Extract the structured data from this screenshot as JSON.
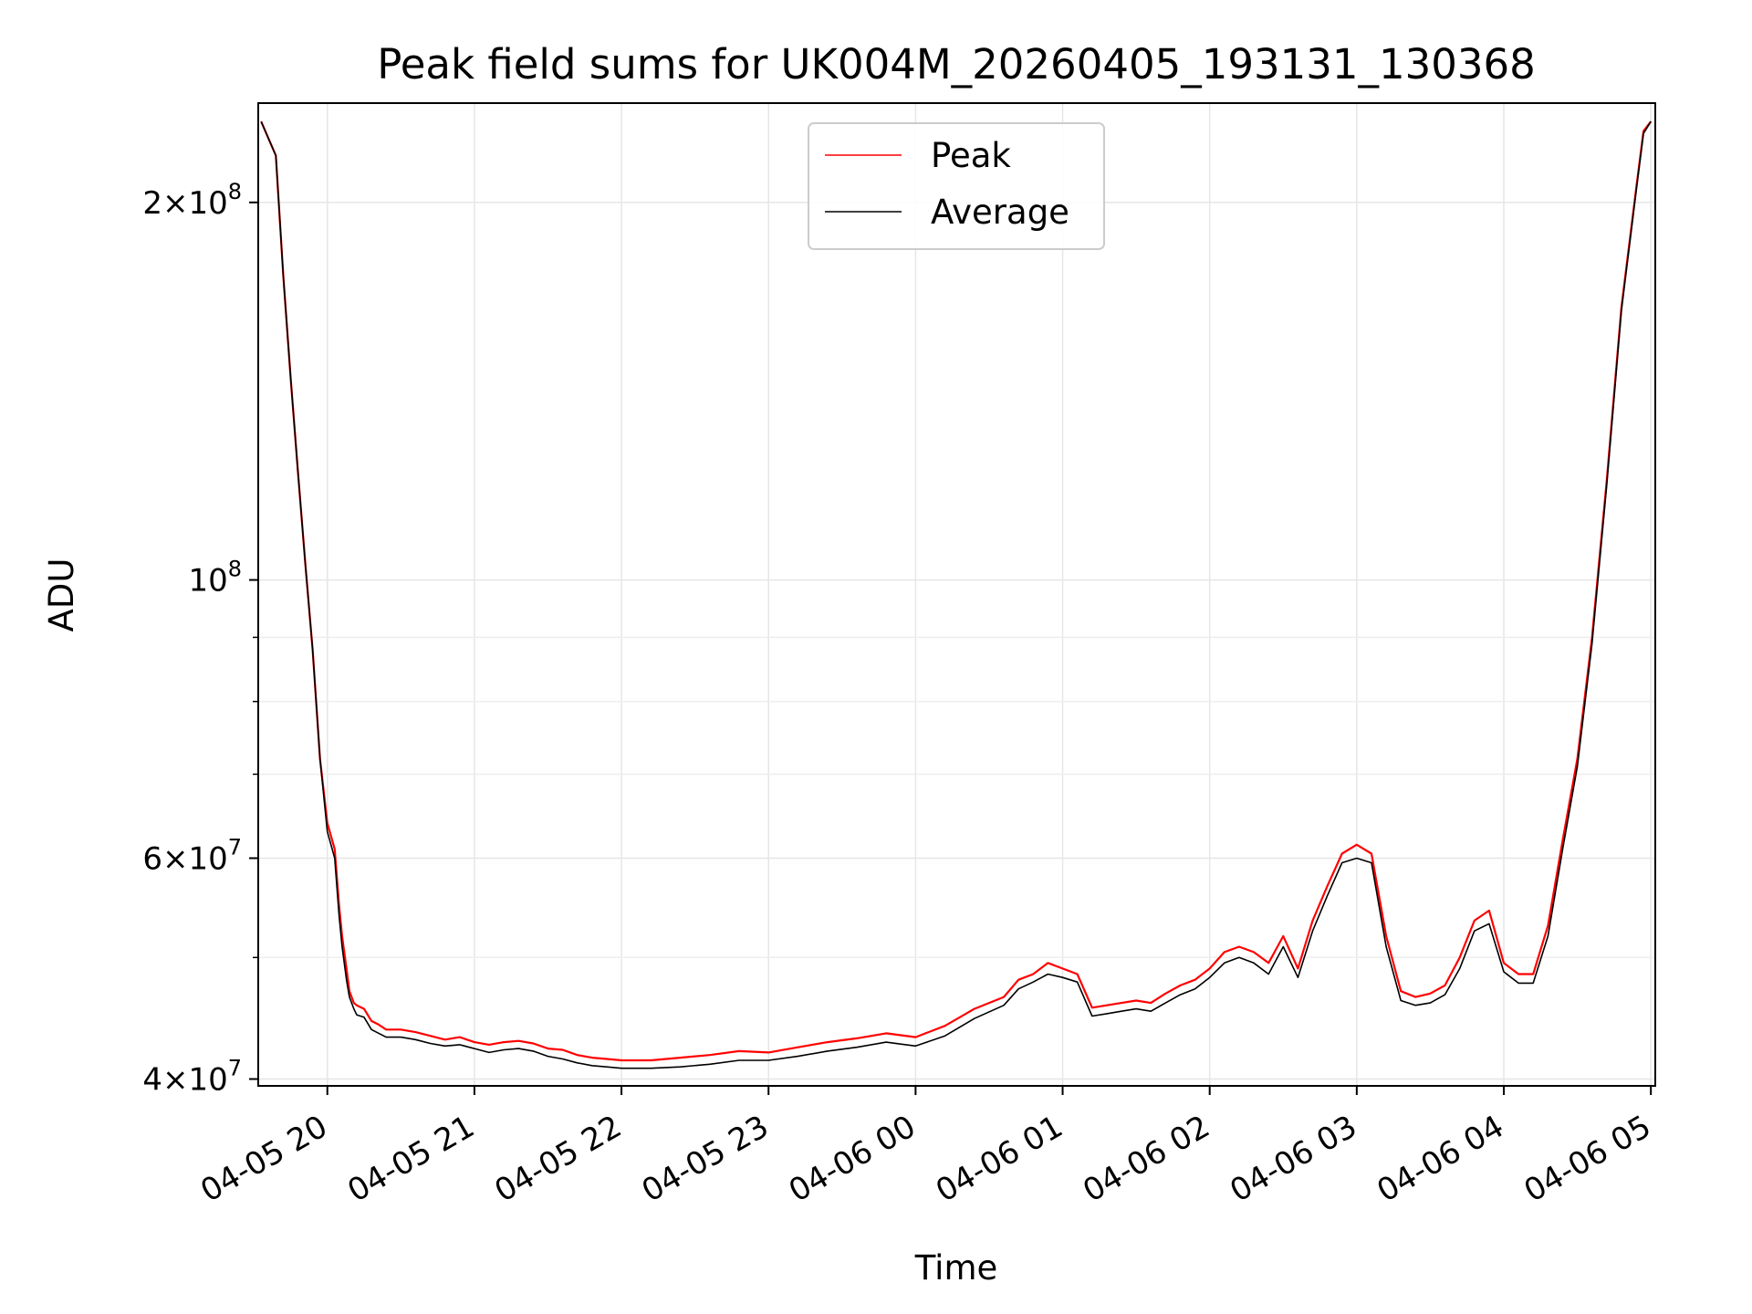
{
  "chart_data": {
    "type": "line",
    "title": "Peak field sums for UK004M_20260405_193131_130368",
    "xlabel": "Time",
    "ylabel": "ADU",
    "yscale": "log",
    "ylim": [
      39500000,
      240000000
    ],
    "xlim": [
      -0.47,
      9.03
    ],
    "grid": true,
    "legend_position": "top-center",
    "x_ticks": [
      {
        "value": 0,
        "label": "04-05 20"
      },
      {
        "value": 1,
        "label": "04-05 21"
      },
      {
        "value": 2,
        "label": "04-05 22"
      },
      {
        "value": 3,
        "label": "04-05 23"
      },
      {
        "value": 4,
        "label": "04-06 00"
      },
      {
        "value": 5,
        "label": "04-06 01"
      },
      {
        "value": 6,
        "label": "04-06 02"
      },
      {
        "value": 7,
        "label": "04-06 03"
      },
      {
        "value": 8,
        "label": "04-06 04"
      },
      {
        "value": 9,
        "label": "04-06 05"
      }
    ],
    "y_ticks": [
      {
        "value": 40000000,
        "mant": "4",
        "exp": "7"
      },
      {
        "value": 60000000,
        "mant": "6",
        "exp": "7"
      },
      {
        "value": 100000000,
        "mant": "",
        "exp": "8"
      },
      {
        "value": 200000000,
        "mant": "2",
        "exp": "8"
      }
    ],
    "y_minor_ticks": [
      50000000,
      70000000,
      80000000,
      90000000
    ],
    "x_hours_note": "x values are hours after 04-05 20:00",
    "series": [
      {
        "name": "Peak",
        "color": "#ff0000",
        "x": [
          -0.45,
          -0.35,
          -0.3,
          -0.25,
          -0.2,
          -0.15,
          -0.1,
          -0.05,
          0.0,
          0.05,
          0.08,
          0.1,
          0.13,
          0.15,
          0.18,
          0.2,
          0.25,
          0.3,
          0.35,
          0.4,
          0.5,
          0.6,
          0.7,
          0.8,
          0.9,
          1.0,
          1.1,
          1.2,
          1.3,
          1.4,
          1.5,
          1.6,
          1.7,
          1.8,
          1.9,
          2.0,
          2.2,
          2.4,
          2.6,
          2.8,
          3.0,
          3.2,
          3.4,
          3.6,
          3.8,
          4.0,
          4.2,
          4.4,
          4.6,
          4.7,
          4.8,
          4.9,
          5.0,
          5.1,
          5.2,
          5.3,
          5.4,
          5.5,
          5.6,
          5.7,
          5.8,
          5.9,
          6.0,
          6.1,
          6.2,
          6.3,
          6.4,
          6.5,
          6.6,
          6.7,
          6.8,
          6.9,
          7.0,
          7.1,
          7.2,
          7.3,
          7.4,
          7.5,
          7.6,
          7.7,
          7.8,
          7.9,
          8.0,
          8.1,
          8.2,
          8.3,
          8.4,
          8.5,
          8.6,
          8.7,
          8.8,
          8.9,
          8.95,
          9.0
        ],
        "y": [
          232000000,
          218000000,
          175000000,
          145000000,
          122000000,
          103000000,
          88000000,
          72000000,
          64000000,
          61000000,
          55000000,
          52000000,
          49000000,
          47000000,
          46000000,
          45800000,
          45500000,
          44500000,
          44200000,
          43800000,
          43800000,
          43600000,
          43300000,
          43000000,
          43200000,
          42800000,
          42600000,
          42800000,
          42900000,
          42700000,
          42300000,
          42200000,
          41800000,
          41600000,
          41500000,
          41400000,
          41400000,
          41600000,
          41800000,
          42100000,
          42000000,
          42400000,
          42800000,
          43100000,
          43500000,
          43200000,
          44100000,
          45500000,
          46500000,
          48000000,
          48500000,
          49500000,
          49000000,
          48500000,
          45600000,
          45800000,
          46000000,
          46200000,
          46000000,
          46800000,
          47500000,
          48000000,
          49000000,
          50500000,
          51000000,
          50500000,
          49500000,
          52000000,
          49000000,
          53500000,
          57000000,
          60500000,
          61500000,
          60500000,
          52000000,
          47000000,
          46500000,
          46800000,
          47500000,
          50000000,
          53500000,
          54500000,
          49500000,
          48500000,
          48500000,
          53000000,
          62000000,
          72000000,
          90000000,
          120000000,
          165000000,
          205000000,
          228000000,
          232000000
        ]
      },
      {
        "name": "Average",
        "color": "#000000",
        "x": [
          -0.45,
          -0.35,
          -0.3,
          -0.25,
          -0.2,
          -0.15,
          -0.1,
          -0.05,
          0.0,
          0.05,
          0.08,
          0.1,
          0.13,
          0.15,
          0.18,
          0.2,
          0.25,
          0.3,
          0.35,
          0.4,
          0.5,
          0.6,
          0.7,
          0.8,
          0.9,
          1.0,
          1.1,
          1.2,
          1.3,
          1.4,
          1.5,
          1.6,
          1.7,
          1.8,
          1.9,
          2.0,
          2.2,
          2.4,
          2.6,
          2.8,
          3.0,
          3.2,
          3.4,
          3.6,
          3.8,
          4.0,
          4.2,
          4.4,
          4.6,
          4.7,
          4.8,
          4.9,
          5.0,
          5.1,
          5.2,
          5.3,
          5.4,
          5.5,
          5.6,
          5.7,
          5.8,
          5.9,
          6.0,
          6.1,
          6.2,
          6.3,
          6.4,
          6.5,
          6.6,
          6.7,
          6.8,
          6.9,
          7.0,
          7.1,
          7.2,
          7.3,
          7.4,
          7.5,
          7.6,
          7.7,
          7.8,
          7.9,
          8.0,
          8.1,
          8.2,
          8.3,
          8.4,
          8.5,
          8.6,
          8.7,
          8.8,
          8.9,
          8.95,
          9.0
        ],
        "y": [
          232000000,
          218000000,
          175000000,
          145000000,
          122000000,
          103000000,
          88000000,
          72000000,
          63000000,
          60000000,
          54000000,
          51000000,
          48000000,
          46500000,
          45500000,
          45000000,
          44800000,
          43800000,
          43500000,
          43200000,
          43200000,
          43000000,
          42700000,
          42500000,
          42600000,
          42300000,
          42000000,
          42200000,
          42300000,
          42100000,
          41700000,
          41500000,
          41200000,
          41000000,
          40900000,
          40800000,
          40800000,
          40900000,
          41100000,
          41400000,
          41400000,
          41700000,
          42100000,
          42400000,
          42800000,
          42500000,
          43300000,
          44700000,
          45800000,
          47200000,
          47800000,
          48500000,
          48200000,
          47800000,
          44900000,
          45100000,
          45300000,
          45500000,
          45300000,
          46000000,
          46700000,
          47200000,
          48200000,
          49500000,
          50000000,
          49500000,
          48500000,
          51000000,
          48200000,
          52500000,
          56000000,
          59500000,
          60000000,
          59500000,
          51000000,
          46200000,
          45800000,
          46000000,
          46700000,
          49000000,
          52500000,
          53200000,
          48700000,
          47700000,
          47700000,
          52000000,
          61000000,
          71000000,
          89000000,
          119000000,
          164000000,
          204000000,
          227000000,
          232000000
        ]
      }
    ]
  }
}
